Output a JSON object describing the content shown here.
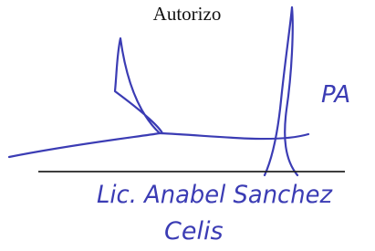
{
  "header": {
    "title": "Autorizo"
  },
  "signature": {
    "initials": "PA",
    "name_line1": "Lic. Anabel Sanchez",
    "name_line2": "Celis"
  }
}
